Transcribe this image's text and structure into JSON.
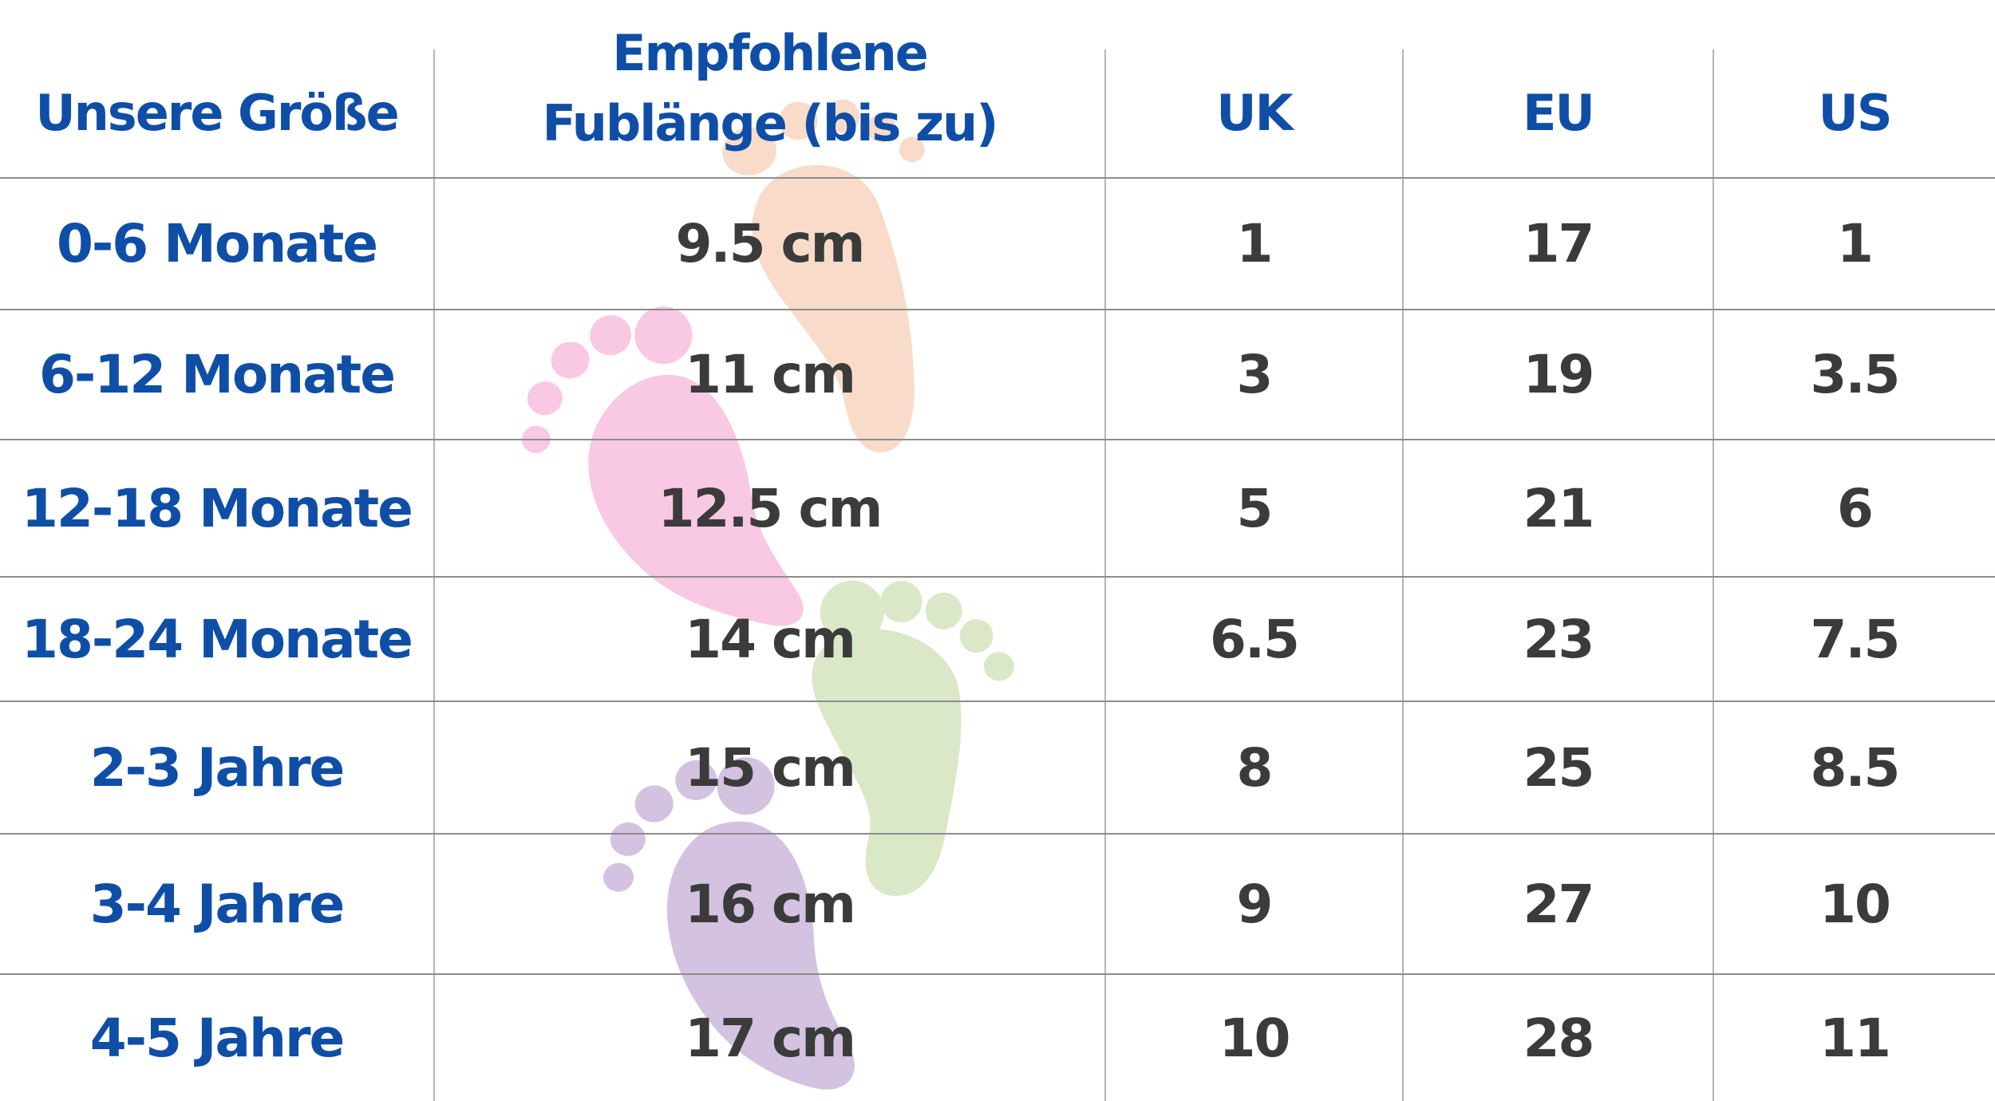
{
  "table": {
    "headers": {
      "size": "Unsere Größe",
      "foot_line1": "Empfohlene",
      "foot_line2": "Fublänge (bis zu)",
      "uk": "UK",
      "eu": "EU",
      "us": "US"
    },
    "rows": [
      {
        "size": "0-6 Monate",
        "foot": "9.5 cm",
        "uk": "1",
        "eu": "17",
        "us": "1"
      },
      {
        "size": "6-12 Monate",
        "foot": "11 cm",
        "uk": "3",
        "eu": "19",
        "us": "3.5"
      },
      {
        "size": "12-18 Monate",
        "foot": "12.5 cm",
        "uk": "5",
        "eu": "21",
        "us": "6"
      },
      {
        "size": "18-24 Monate",
        "foot": "14 cm",
        "uk": "6.5",
        "eu": "23",
        "us": "7.5"
      },
      {
        "size": "2-3 Jahre",
        "foot": "15 cm",
        "uk": "8",
        "eu": "25",
        "us": "8.5"
      },
      {
        "size": "3-4 Jahre",
        "foot": "16 cm",
        "uk": "9",
        "eu": "27",
        "us": "10"
      },
      {
        "size": "4-5 Jahre",
        "foot": "17 cm",
        "uk": "10",
        "eu": "28",
        "us": "11"
      }
    ]
  },
  "colors": {
    "header_text": "#0f4ea6",
    "value_text": "#3b3b3b",
    "footprint_peach": "#f8dcc9",
    "footprint_pink": "#f9c8e3",
    "footprint_green": "#dbe8c8",
    "footprint_purple": "#d3c2e0"
  },
  "decorations": [
    "footprint-icon",
    "footprint-icon",
    "footprint-icon",
    "footprint-icon"
  ]
}
